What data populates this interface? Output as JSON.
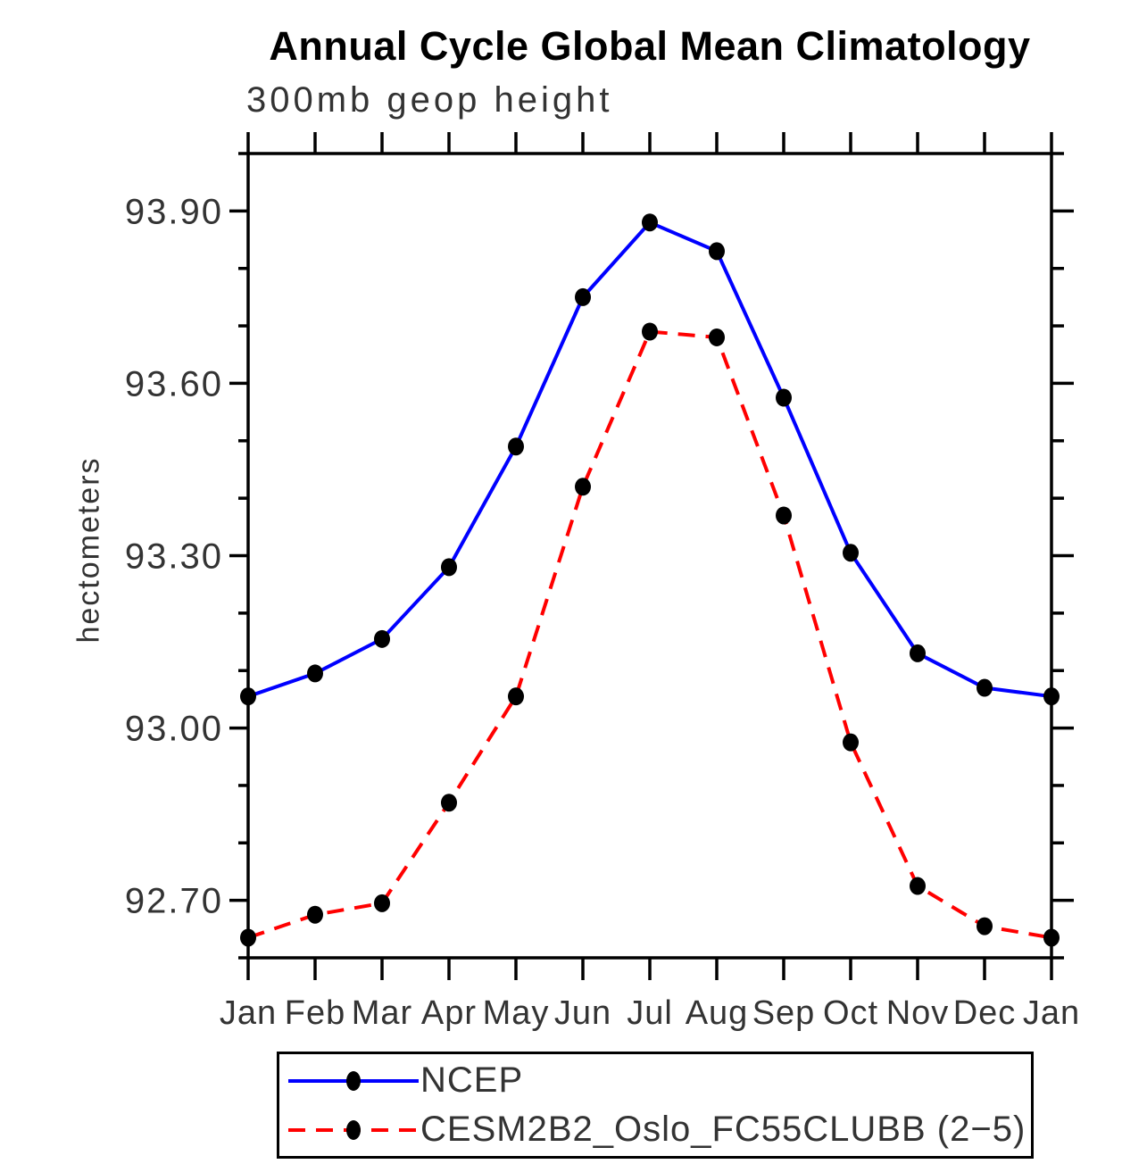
{
  "chart_data": {
    "type": "line",
    "title": "Annual Cycle Global Mean Climatology",
    "subtitle": "300mb geop height",
    "ylabel": "hectometers",
    "x": [
      "Jan",
      "Feb",
      "Mar",
      "Apr",
      "May",
      "Jun",
      "Jul",
      "Aug",
      "Sep",
      "Oct",
      "Nov",
      "Dec",
      "Jan"
    ],
    "ylim": [
      92.6,
      94.0
    ],
    "yticks_major": [
      92.7,
      93.0,
      93.3,
      93.6,
      93.9
    ],
    "yticks_minor": [
      92.6,
      92.8,
      92.9,
      93.1,
      93.2,
      93.4,
      93.5,
      93.7,
      93.8,
      94.0
    ],
    "grid": false,
    "legend_position": "below-plot",
    "axis_color": "#000000",
    "text_color": "#333333",
    "marker_color": "#000000",
    "series": [
      {
        "id": "ncep",
        "label": "NCEP",
        "color": "#0000ff",
        "style": "solid",
        "marker": "filled-dot",
        "values": [
          93.055,
          93.095,
          93.155,
          93.28,
          93.49,
          93.75,
          93.88,
          93.83,
          93.575,
          93.305,
          93.13,
          93.07,
          93.055
        ]
      },
      {
        "id": "cesm",
        "label": "CESM2B2_Oslo_FC55CLUBB (2−5)",
        "color": "#ff0000",
        "style": "dashed",
        "marker": "filled-dot",
        "values": [
          92.635,
          92.675,
          92.695,
          92.87,
          93.055,
          93.42,
          93.69,
          93.68,
          93.37,
          92.975,
          92.725,
          92.655,
          92.635
        ]
      }
    ]
  }
}
